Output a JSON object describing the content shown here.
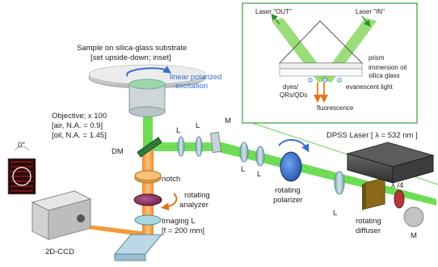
{
  "labels": {
    "sample_line1": "Sample on silica-glass substrate",
    "sample_line2": "[set upside-down; inset]",
    "linear_line1": "linear polarized",
    "linear_line2": "excitation",
    "objective_line1": "Objective; x 100",
    "objective_line2": "[air, N.A. = 0.9]",
    "objective_line3": "[oil, N.A. = 1.45]",
    "dm": "DM",
    "notch": "notch",
    "rotating_analyzer_line1": "rotating",
    "rotating_analyzer_line2": "analyzer",
    "imaging_line1": "Imaging L",
    "imaging_line2": "[f = 200 mm]",
    "ccd": "2D-CCD",
    "zero_deg": "0°",
    "lens_l1": "L",
    "lens_l2": "L",
    "mirror_m1": "M",
    "lens_l3": "L",
    "lens_l4": "L",
    "rotating_polarizer_line1": "rotating",
    "rotating_polarizer_line2": "polarizer",
    "lens_l5": "L",
    "dpss_laser": "DPSS Laser [ λ = 532 nm ]",
    "quarter_wave": "λ /4",
    "rotating_diffuser_line1": "rotating",
    "rotating_diffuser_line2": "diffuser",
    "mirror_m2": "M"
  },
  "inset": {
    "laser_out": "Laser \"OUT\"",
    "laser_in": "Laser \"IN\"",
    "prism": "prism",
    "immersion_oil": "immersion oil",
    "silica_glass": "silica glass",
    "evanescent_light": "evanescent light",
    "dyes_line1": "dyes/",
    "dyes_line2": "QRs/QDs",
    "fluorescence": "fluorescence"
  },
  "colors": {
    "laser_green": "#5fd24a",
    "fluorescence_orange": "#f29a3a",
    "inset_border": "#3b9a3b",
    "accent_blue": "#3a6fd0"
  }
}
